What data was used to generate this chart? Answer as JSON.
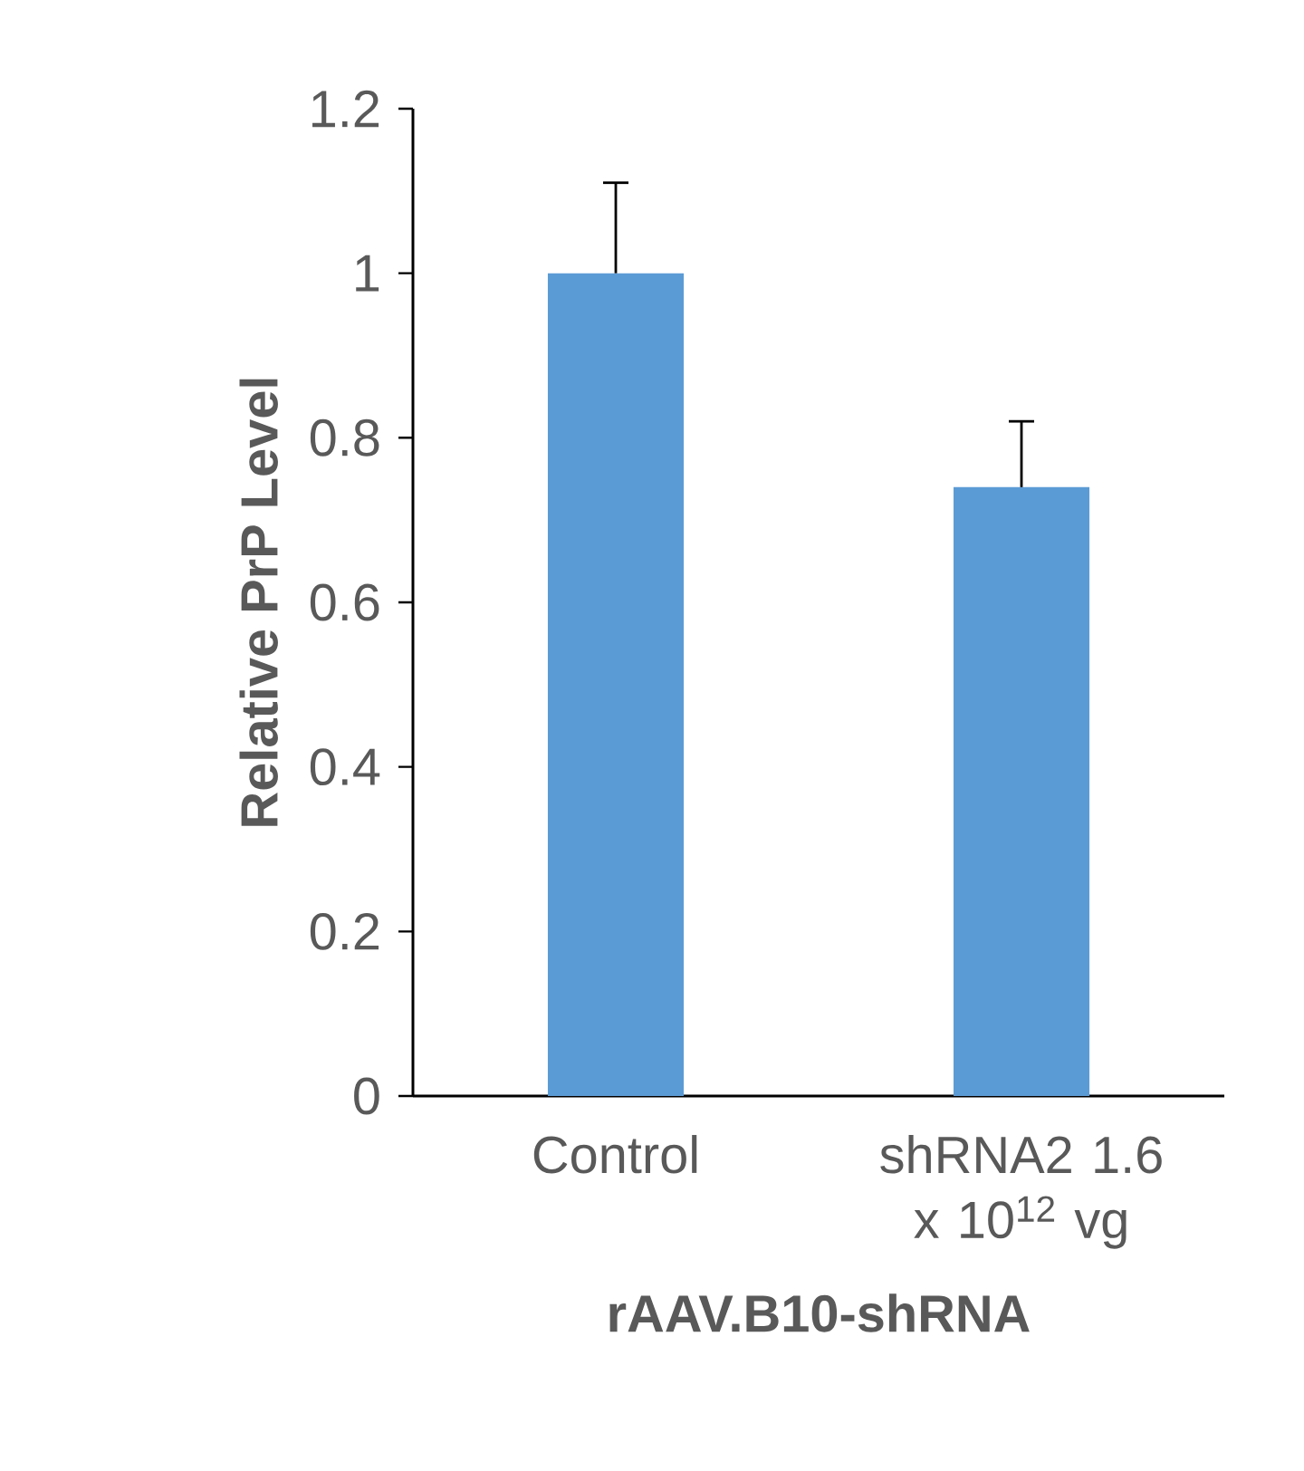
{
  "chart_data": {
    "type": "bar",
    "categories": [
      "Control",
      "shRNA2 1.6 x 10$^{12}$ vg"
    ],
    "values": [
      1.0,
      0.74
    ],
    "errors": [
      [
        1.0,
        1.11
      ],
      [
        0.74,
        0.82
      ]
    ],
    "color": "#5b9bd5",
    "xlabel": "rAAV.B10-shRNA",
    "ylabel": "Relative PrP Level",
    "ylim": [
      0,
      1.2
    ],
    "yticks": [
      0,
      0.2,
      0.4,
      0.6,
      0.8,
      1,
      1.2
    ],
    "grid": false
  }
}
